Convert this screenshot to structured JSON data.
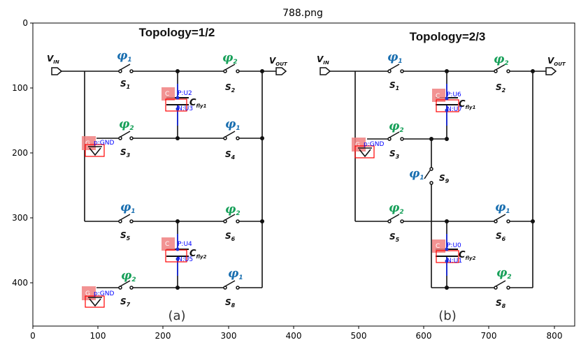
{
  "figure": {
    "title": "788.png"
  },
  "axes": {
    "x_ticks": [
      "0",
      "100",
      "200",
      "300",
      "400",
      "500",
      "600",
      "700",
      "800"
    ],
    "y_ticks": [
      "0",
      "100",
      "200",
      "300",
      "400"
    ]
  },
  "circuit_a": {
    "title": "Topology=1/2",
    "panel_label": "(a)",
    "vin": {
      "main": "V",
      "sub": "IN"
    },
    "vout": {
      "main": "V",
      "sub": "OUT"
    },
    "phases": [
      {
        "id": "a1",
        "main": "φ",
        "sub": "1",
        "color": "#1a6fb0"
      },
      {
        "id": "a2",
        "main": "φ",
        "sub": "2",
        "color": "#18a05a"
      },
      {
        "id": "a3",
        "main": "φ",
        "sub": "2",
        "color": "#18a05a"
      },
      {
        "id": "a4",
        "main": "φ",
        "sub": "1",
        "color": "#1a6fb0"
      },
      {
        "id": "a5",
        "main": "φ",
        "sub": "1",
        "color": "#1a6fb0"
      },
      {
        "id": "a6",
        "main": "φ",
        "sub": "2",
        "color": "#18a05a"
      },
      {
        "id": "a7",
        "main": "φ",
        "sub": "2",
        "color": "#18a05a"
      },
      {
        "id": "a8",
        "main": "φ",
        "sub": "1",
        "color": "#1a6fb0"
      }
    ],
    "switches": [
      {
        "main": "S",
        "sub": "1"
      },
      {
        "main": "S",
        "sub": "2"
      },
      {
        "main": "S",
        "sub": "3"
      },
      {
        "main": "S",
        "sub": "4"
      },
      {
        "main": "S",
        "sub": "5"
      },
      {
        "main": "S",
        "sub": "6"
      },
      {
        "main": "S",
        "sub": "7"
      },
      {
        "main": "S",
        "sub": "8"
      }
    ],
    "capacitors": [
      {
        "main": "C",
        "sub": "fly1",
        "p_tag": "P:U2",
        "n_tag": "N:U3"
      },
      {
        "main": "C",
        "sub": "fly2",
        "p_tag": "P:U4",
        "n_tag": "N:U5"
      }
    ],
    "grounds": [
      {
        "tag": "p:GND"
      },
      {
        "tag": "p:GND"
      }
    ]
  },
  "circuit_b": {
    "title": "Topology=2/3",
    "panel_label": "(b)",
    "vin": {
      "main": "V",
      "sub": "IN"
    },
    "vout": {
      "main": "V",
      "sub": "OUT"
    },
    "phases": [
      {
        "id": "b1",
        "main": "φ",
        "sub": "1",
        "color": "#1a6fb0"
      },
      {
        "id": "b2",
        "main": "φ",
        "sub": "2",
        "color": "#18a05a"
      },
      {
        "id": "b3",
        "main": "φ",
        "sub": "2",
        "color": "#18a05a"
      },
      {
        "id": "b9",
        "main": "φ",
        "sub": "1",
        "color": "#1a6fb0"
      },
      {
        "id": "b5",
        "main": "φ",
        "sub": "2",
        "color": "#18a05a"
      },
      {
        "id": "b6",
        "main": "φ",
        "sub": "1",
        "color": "#1a6fb0"
      },
      {
        "id": "b8",
        "main": "φ",
        "sub": "2",
        "color": "#18a05a"
      }
    ],
    "switches": [
      {
        "main": "S",
        "sub": "1"
      },
      {
        "main": "S",
        "sub": "2"
      },
      {
        "main": "S",
        "sub": "3"
      },
      {
        "main": "S",
        "sub": "9"
      },
      {
        "main": "S",
        "sub": "5"
      },
      {
        "main": "S",
        "sub": "6"
      },
      {
        "main": "S",
        "sub": "8"
      }
    ],
    "capacitors": [
      {
        "main": "C",
        "sub": "fly1",
        "p_tag": "P:U6",
        "n_tag": "N:U7"
      },
      {
        "main": "C",
        "sub": "fly2",
        "p_tag": "P:U0",
        "n_tag": "N:U1"
      }
    ],
    "grounds": [
      {
        "tag": "p:GND"
      }
    ]
  },
  "annotation": {
    "cap_marker": "C",
    "gnd_marker": "G",
    "box_color": "#ff0000",
    "marker_fill": "#f08080",
    "tag_color": "#0000ff"
  }
}
